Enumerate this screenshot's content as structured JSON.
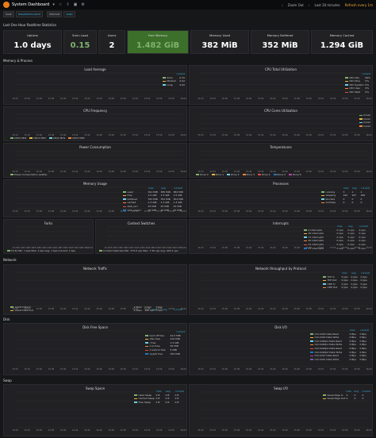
{
  "topbar": {
    "title": "System Dashboard",
    "chevron": "▾",
    "icons": [
      "star-icon",
      "share-icon",
      "save-icon",
      "settings-icon"
    ],
    "zoom_out": "Zoom Out",
    "time_range": "Last 30 minutes",
    "refresh": "Refresh every 1m"
  },
  "vars": [
    {
      "label": "host",
      "value": "mavericks.local"
    },
    {
      "label": "interval",
      "value": "auto"
    }
  ],
  "rows": {
    "realtime": "Last One Hour Realtime Statistics",
    "memory_process": "Memory & Process",
    "network": "Network",
    "disk": "Disk",
    "swap": "Swap"
  },
  "stats": [
    {
      "title": "Uptime",
      "value": "1.0 days"
    },
    {
      "title": "5min Load",
      "value": "0.15"
    },
    {
      "title": "Users",
      "value": "2"
    },
    {
      "title": "Free Memory",
      "value": "1.482 GiB"
    },
    {
      "title": "Memory Used",
      "value": "382 MiB"
    },
    {
      "title": "Memory Buffered",
      "value": "352 MiB"
    },
    {
      "title": "Memory Cached",
      "value": "1.294 GiB"
    }
  ],
  "panels": {
    "load": {
      "title": "Load Average",
      "legend_head": "current",
      "legend": [
        {
          "name": "5min",
          "value": "0.15",
          "color": "#7eb26d"
        },
        {
          "name": "Medium",
          "value": "0.02",
          "color": "#eab839"
        },
        {
          "name": "Long",
          "value": "0.00",
          "color": "#6ed0e0"
        }
      ]
    },
    "cpu_total": {
      "title": "CPU Total Utilization",
      "legend_head": "current",
      "legend": [
        {
          "name": "CPU Idle",
          "value": "99%",
          "color": "#7eb26d"
        },
        {
          "name": "CPU Nice",
          "value": "0%",
          "color": "#eab839"
        },
        {
          "name": "CPU System",
          "value": "0%",
          "color": "#6ed0e0"
        },
        {
          "name": "CPU User",
          "value": "0%",
          "color": "#ef843c"
        },
        {
          "name": "CPU Wait",
          "value": "0%",
          "color": "#e24d42"
        }
      ]
    },
    "cpu_freq": {
      "title": "CPU Frequency",
      "legend": [
        "CPU0 MHz",
        "CPU1 MHz",
        "CPU2 MHz",
        "CPU3 MHz"
      ]
    },
    "cpu_cores": {
      "title": "CPU Cores Utilization",
      "legend": [
        "Core0",
        "Core1",
        "Core2",
        "Core3"
      ]
    },
    "power": {
      "title": "Power Consumption",
      "legend": [
        "Power Consumption (watts)"
      ]
    },
    "temps": {
      "title": "Temperatures",
      "legend": [
        "Zone 0",
        "Zone 1",
        "Zone 2",
        "Zone 3",
        "Zone 4",
        "Zone 5",
        "Zone 6"
      ]
    },
    "mem_usage": {
      "title": "Memory Usage",
      "legend_head": [
        "max",
        "avg",
        "current"
      ],
      "legend": [
        {
          "name": "used",
          "max": "391 MiB",
          "avg": "385 MiB",
          "cur": "382 MiB",
          "color": "#7eb26d"
        },
        {
          "name": "free",
          "max": "1.5 GiB",
          "avg": "1.5 GiB",
          "cur": "1.5 GiB",
          "color": "#eab839"
        },
        {
          "name": "buffered",
          "max": "352 MiB",
          "avg": "352 MiB",
          "cur": "352 MiB",
          "color": "#6ed0e0"
        },
        {
          "name": "cached",
          "max": "1.3 GiB",
          "avg": "1.3 GiB",
          "cur": "1.3 GiB",
          "color": "#ef843c"
        },
        {
          "name": "slab_recl",
          "max": "43 MiB",
          "avg": "43 MiB",
          "cur": "43 MiB",
          "color": "#e24d42"
        },
        {
          "name": "slab_unrecl",
          "max": "15 MiB",
          "avg": "15 MiB",
          "cur": "15 MiB",
          "color": "#1f78c1"
        }
      ]
    },
    "processes": {
      "title": "Processes",
      "legend_head": [
        "max",
        "avg",
        "current"
      ],
      "legend": [
        {
          "name": "running",
          "max": "3",
          "avg": "1",
          "cur": "1",
          "color": "#7eb26d"
        },
        {
          "name": "sleeping",
          "max": "190",
          "avg": "187",
          "cur": "186",
          "color": "#eab839"
        },
        {
          "name": "blocked",
          "max": "0",
          "avg": "0",
          "cur": "0",
          "color": "#6ed0e0"
        },
        {
          "name": "zombies",
          "max": "0",
          "avg": "0",
          "cur": "0",
          "color": "#ef843c"
        }
      ]
    },
    "forks": {
      "title": "Forks",
      "legend": [
        "Forks Min: 1 bps Max: 1 bps Avg: 1 bps Current: 1 bps"
      ]
    },
    "context": {
      "title": "Context Switches",
      "legend": [
        "Context Switches Min: 375.6 ops Max: 7.3K ops Avg: 403.4 ops"
      ]
    },
    "interrupts": {
      "title": "Interrupts",
      "legend_head": [
        "max",
        "avg",
        "current"
      ],
      "legend": [
        {
          "name": "0 interrupts",
          "max": "0 ops",
          "avg": "0 ops",
          "cur": "0 ops",
          "color": "#7eb26d"
        },
        {
          "name": "16 interrupts",
          "max": "0 ops",
          "avg": "0 ops",
          "cur": "0 ops",
          "color": "#eab839"
        },
        {
          "name": "17 interrupts",
          "max": "0 ops",
          "avg": "0 ops",
          "cur": "0 ops",
          "color": "#6ed0e0"
        },
        {
          "name": "20 interrupts",
          "max": "0 ops",
          "avg": "0 ops",
          "cur": "0 ops",
          "color": "#ef843c"
        },
        {
          "name": "21 interrupts",
          "max": "0 ops",
          "avg": "0 ops",
          "cur": "0 ops",
          "color": "#e24d42"
        },
        {
          "name": "27 interrupts",
          "max": "0 ops",
          "avg": "0 ops",
          "cur": "0 ops",
          "color": "#1f78c1"
        }
      ]
    },
    "net_traffic": {
      "title": "Network Traffic",
      "legend_head": [
        "max",
        "avg",
        "current"
      ],
      "legend": [
        {
          "name": "wlan0 Data In",
          "max": "1 Kbps",
          "avg": "0 bps",
          "cur": "0 bps",
          "color": "#7eb26d"
        },
        {
          "name": "wlan0 Data Out",
          "max": "4 Kbps",
          "avg": "480 bps",
          "cur": "0 bps",
          "color": "#eab839"
        }
      ]
    },
    "net_proto": {
      "title": "Network throughput by Protocol",
      "legend_head": [
        "max",
        "avg",
        "current"
      ],
      "legend": [
        {
          "name": "TCP In",
          "max": "0 pps",
          "avg": "0 pps",
          "cur": "0 pps",
          "color": "#7eb26d"
        },
        {
          "name": "TCP Out",
          "max": "0 pps",
          "avg": "0 pps",
          "cur": "0 pps",
          "color": "#eab839"
        },
        {
          "name": "UDP In",
          "max": "0 pps",
          "avg": "0 pps",
          "cur": "0 pps",
          "color": "#6ed0e0"
        },
        {
          "name": "UDP Out",
          "max": "0 pps",
          "avg": "0 pps",
          "cur": "0 pps",
          "color": "#ef843c"
        }
      ]
    },
    "disk_free": {
      "title": "Disk Free Space",
      "legend_head": "current",
      "legend": [
        {
          "name": "boot off free",
          "value": "22.0 MiB",
          "color": "#7eb26d"
        },
        {
          "name": "/dev free",
          "value": "210 MiB",
          "color": "#eab839"
        },
        {
          "name": "/ free",
          "value": "1.4 GiB",
          "color": "#6ed0e0"
        },
        {
          "name": "/run free",
          "value": "95 MiB",
          "color": "#ef843c"
        },
        {
          "name": "/run/lock free",
          "value": "5 MiB",
          "color": "#e24d42"
        },
        {
          "name": "/sys/fs free",
          "value": "250 MiB",
          "color": "#1f78c1"
        }
      ]
    },
    "disk_io": {
      "title": "Disk I/O",
      "legend_head": [
        "max",
        "current"
      ],
      "legend": [
        {
          "name": "mmcblk0 Data Read",
          "max": "0 Bps",
          "cur": "0 Bps",
          "color": "#7eb26d"
        },
        {
          "name": "mmcblk0 Data Write",
          "max": "0 Bps",
          "cur": "0 Bps",
          "color": "#eab839"
        },
        {
          "name": "mmcblk0p1 Data Read",
          "max": "0 Bps",
          "cur": "0 Bps",
          "color": "#6ed0e0"
        },
        {
          "name": "mmcblk0p1 Data Write",
          "max": "0 Bps",
          "cur": "0 Bps",
          "color": "#ef843c"
        },
        {
          "name": "mmcblk0p2 Data Read",
          "max": "0 Bps",
          "cur": "0 Bps",
          "color": "#e24d42"
        },
        {
          "name": "mmcblk0p2 Data Write",
          "max": "0 Bps",
          "cur": "0 Bps",
          "color": "#1f78c1"
        },
        {
          "name": "mmcblk1 Data Read",
          "max": "0 Bps",
          "cur": "0 Bps",
          "color": "#ba43a9"
        },
        {
          "name": "mmcblk1 Data Write",
          "max": "0 Bps",
          "cur": "0 Bps",
          "color": "#705da0"
        }
      ]
    },
    "swap_space": {
      "title": "Swap Space",
      "legend_head": [
        "max",
        "avg",
        "current"
      ],
      "legend": [
        {
          "name": "Used Swap",
          "max": "0 B",
          "avg": "0 B",
          "cur": "0 B",
          "color": "#7eb26d"
        },
        {
          "name": "Cached Swap",
          "max": "0 B",
          "avg": "0 B",
          "cur": "0 B",
          "color": "#eab839"
        },
        {
          "name": "Free Swap",
          "max": "0 B",
          "avg": "0 B",
          "cur": "0 B",
          "color": "#6ed0e0"
        }
      ]
    },
    "swap_io": {
      "title": "Swap I/O",
      "legend_head": [
        "max",
        "avg",
        "current"
      ],
      "legend": [
        {
          "name": "Swap Page In",
          "max": "0",
          "avg": "0",
          "cur": "0",
          "color": "#7eb26d"
        },
        {
          "name": "Swap Page Out",
          "max": "0",
          "avg": "0",
          "cur": "0",
          "color": "#eab839"
        }
      ]
    }
  },
  "time_ticks": [
    "15:32",
    "15:34",
    "15:36",
    "15:38",
    "15:40",
    "15:42",
    "15:44",
    "15:46",
    "15:48",
    "15:50",
    "15:52",
    "15:54",
    "15:56",
    "15:58",
    "16:00"
  ],
  "chart_data": [
    {
      "type": "line",
      "title": "Load Average",
      "series": [
        {
          "name": "5min"
        },
        {
          "name": "Medium"
        },
        {
          "name": "Long"
        }
      ]
    },
    {
      "type": "line",
      "title": "CPU Total Utilization",
      "series": [
        {
          "name": "CPU Idle"
        }
      ]
    },
    {
      "type": "line",
      "title": "CPU Frequency",
      "series": [
        {
          "name": "CPU0 MHz"
        },
        {
          "name": "CPU1 MHz"
        },
        {
          "name": "CPU2 MHz"
        },
        {
          "name": "CPU3 MHz"
        }
      ]
    },
    {
      "type": "line",
      "title": "CPU Cores Utilization",
      "series": [
        {
          "name": "Core0"
        }
      ]
    },
    {
      "type": "line",
      "title": "Power Consumption",
      "series": [
        {
          "name": "Power Consumption (watts)"
        }
      ]
    },
    {
      "type": "line",
      "title": "Temperatures",
      "series": [
        {
          "name": "Zone 0"
        }
      ]
    },
    {
      "type": "line",
      "title": "Memory Usage",
      "series": [
        {
          "name": "used"
        }
      ]
    },
    {
      "type": "line",
      "title": "Processes",
      "series": [
        {
          "name": "running"
        }
      ]
    },
    {
      "type": "line",
      "title": "Forks",
      "series": [
        {
          "name": "Forks"
        }
      ]
    },
    {
      "type": "line",
      "title": "Context Switches",
      "series": [
        {
          "name": "Context Switches"
        }
      ]
    },
    {
      "type": "line",
      "title": "Interrupts",
      "series": [
        {
          "name": "0 interrupts"
        }
      ]
    },
    {
      "type": "line",
      "title": "Network Traffic",
      "series": [
        {
          "name": "wlan0 Data In"
        }
      ]
    },
    {
      "type": "line",
      "title": "Network throughput by Protocol",
      "series": [
        {
          "name": "TCP In"
        }
      ]
    },
    {
      "type": "line",
      "title": "Disk Free Space",
      "series": [
        {
          "name": "/ free"
        }
      ]
    },
    {
      "type": "line",
      "title": "Disk I/O",
      "series": [
        {
          "name": "mmcblk0 Data Read"
        }
      ]
    },
    {
      "type": "line",
      "title": "Swap Space",
      "series": [
        {
          "name": "Used Swap"
        }
      ]
    },
    {
      "type": "line",
      "title": "Swap I/O",
      "series": [
        {
          "name": "Swap Page In"
        }
      ]
    }
  ]
}
